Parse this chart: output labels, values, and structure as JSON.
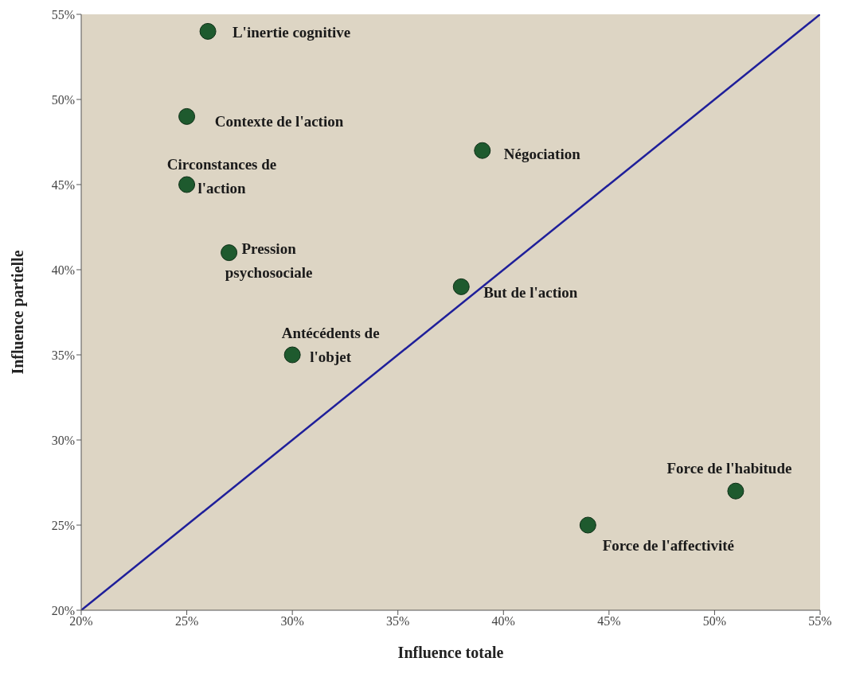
{
  "chart_data": {
    "type": "scatter",
    "xlabel": "Influence totale",
    "ylabel": "Influence partielle",
    "xlim": [
      20,
      55
    ],
    "ylim": [
      20,
      55
    ],
    "xticks": [
      {
        "value": 20,
        "label": "20%"
      },
      {
        "value": 25,
        "label": "25%"
      },
      {
        "value": 30,
        "label": "30%"
      },
      {
        "value": 35,
        "label": "35%"
      },
      {
        "value": 40,
        "label": "40%"
      },
      {
        "value": 45,
        "label": "45%"
      },
      {
        "value": 50,
        "label": "50%"
      },
      {
        "value": 55,
        "label": "55%"
      }
    ],
    "yticks": [
      {
        "value": 20,
        "label": "20%"
      },
      {
        "value": 25,
        "label": "25%"
      },
      {
        "value": 30,
        "label": "30%"
      },
      {
        "value": 35,
        "label": "35%"
      },
      {
        "value": 40,
        "label": "40%"
      },
      {
        "value": 45,
        "label": "45%"
      },
      {
        "value": 50,
        "label": "50%"
      },
      {
        "value": 55,
        "label": "55%"
      }
    ],
    "grid": false,
    "legend": false,
    "series": [
      {
        "marker": "circle",
        "color": "#1e5a2e",
        "x": [
          26,
          25,
          25,
          27,
          30,
          39,
          38,
          51,
          44
        ],
        "values": [
          54,
          49,
          45,
          41,
          35,
          47,
          39,
          27,
          25
        ]
      },
      {
        "type": "line",
        "color": "#1f1f9a",
        "x": [
          20,
          55
        ],
        "values": [
          20,
          55
        ]
      }
    ],
    "annotations": [
      {
        "text": "L'inertie cognitive",
        "x": 26,
        "y": 54
      },
      {
        "text": "Contexte de l'action",
        "x": 25,
        "y": 49
      },
      {
        "text": "Circonstances de l'action",
        "x": 25,
        "y": 45
      },
      {
        "text": "Pression psychosociale",
        "x": 27,
        "y": 41
      },
      {
        "text": "Antécédents de l'objet",
        "x": 30,
        "y": 35
      },
      {
        "text": "Négociation",
        "x": 39,
        "y": 47
      },
      {
        "text": "But de l'action",
        "x": 38,
        "y": 39
      },
      {
        "text": "Force de l'habitude",
        "x": 51,
        "y": 27
      },
      {
        "text": "Force de l'affectivité",
        "x": 44,
        "y": 25
      }
    ]
  }
}
